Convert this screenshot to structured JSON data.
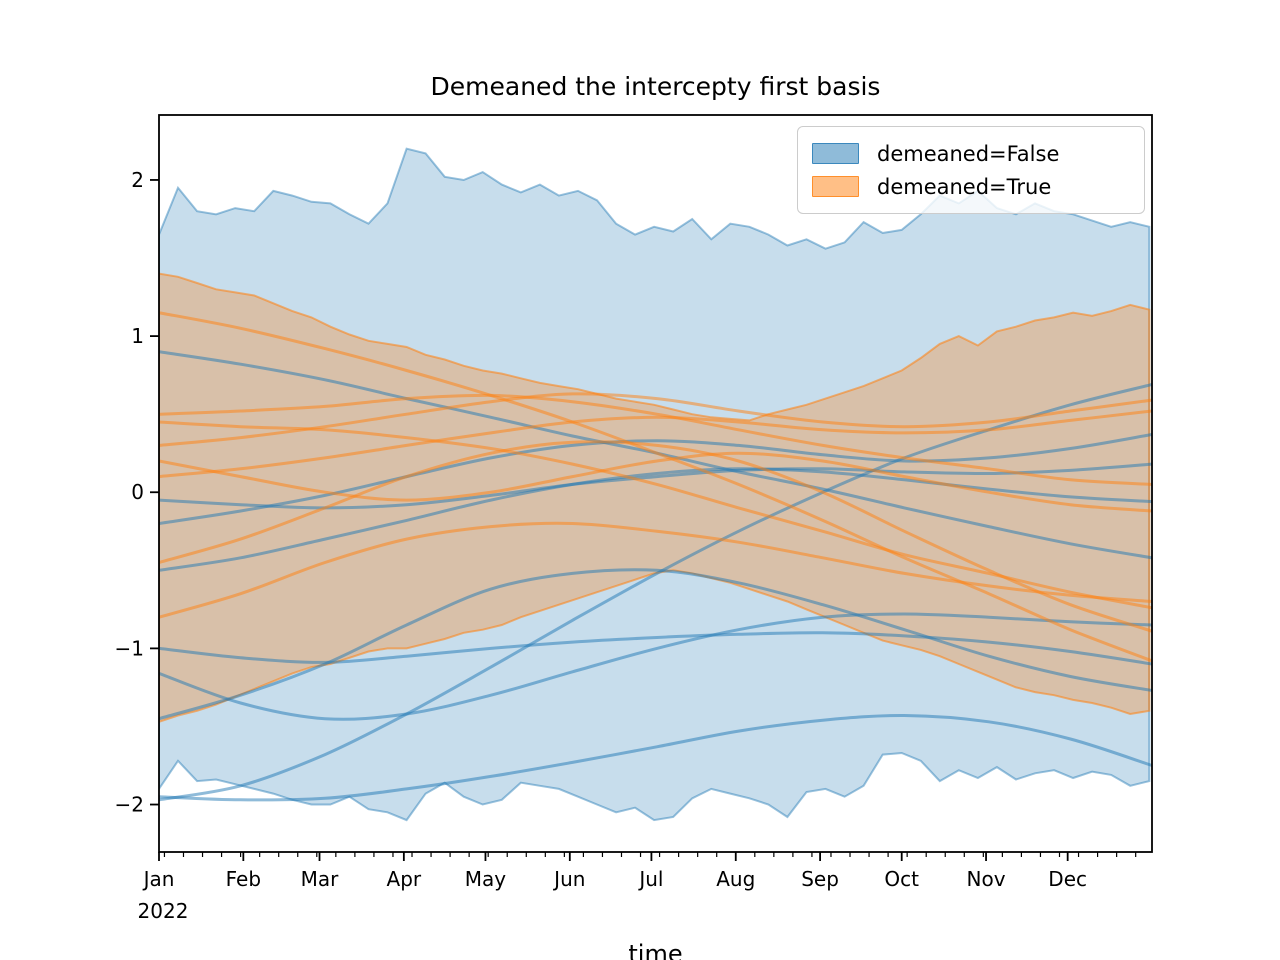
{
  "chart_data": {
    "type": "line",
    "title": "Demeaned the intercepty first basis",
    "xlabel": "time",
    "ylabel": "",
    "grid": false,
    "legend_position": "upper right",
    "legend": {
      "entries": [
        {
          "label": "demeaned=False",
          "series": "demeaned_false"
        },
        {
          "label": "demeaned=True",
          "series": "demeaned_true"
        }
      ]
    },
    "colors": {
      "demeaned_false": "#1f77b4",
      "demeaned_true": "#ff7f0e",
      "band_alpha_false": 0.25,
      "band_alpha_true": 0.3,
      "band_edge_alpha_false": 0.45,
      "band_edge_alpha_true": 0.55,
      "line_alpha": 0.5,
      "axis_color": "#000000"
    },
    "x_axis": {
      "unit": "day of year 2022",
      "range_days": [
        0,
        365
      ],
      "major_tick_days": [
        0,
        31,
        59,
        90,
        120,
        151,
        181,
        212,
        243,
        273,
        304,
        334
      ],
      "major_tick_labels": [
        "Jan",
        "Feb",
        "Mar",
        "Apr",
        "May",
        "Jun",
        "Jul",
        "Aug",
        "Sep",
        "Oct",
        "Nov",
        "Dec"
      ],
      "year_label": "2022",
      "minor_tick_start_day": 2,
      "minor_tick_interval_days": 7
    },
    "y_axis": {
      "range": [
        -2.304,
        2.416
      ],
      "ticks": [
        -2,
        -1,
        0,
        1,
        2
      ],
      "tick_labels": [
        "−2",
        "−1",
        "0",
        "1",
        "2"
      ]
    },
    "bands": {
      "sample_interval_days": 7,
      "demeaned_false": {
        "upper": [
          1.65,
          1.95,
          1.8,
          1.78,
          1.82,
          1.8,
          1.93,
          1.9,
          1.86,
          1.85,
          1.78,
          1.72,
          1.85,
          2.2,
          2.17,
          2.02,
          2.0,
          2.05,
          1.97,
          1.92,
          1.97,
          1.9,
          1.93,
          1.87,
          1.72,
          1.65,
          1.7,
          1.67,
          1.75,
          1.62,
          1.72,
          1.7,
          1.65,
          1.58,
          1.62,
          1.56,
          1.6,
          1.73,
          1.66,
          1.68,
          1.78,
          1.9,
          1.85,
          1.93,
          1.82,
          1.78,
          1.85,
          1.8,
          1.78,
          1.74,
          1.7,
          1.73,
          1.7
        ],
        "lower": [
          -1.9,
          -1.72,
          -1.85,
          -1.84,
          -1.87,
          -1.9,
          -1.93,
          -1.97,
          -2.0,
          -2.0,
          -1.95,
          -2.03,
          -2.05,
          -2.1,
          -1.93,
          -1.86,
          -1.95,
          -2.0,
          -1.97,
          -1.86,
          -1.88,
          -1.9,
          -1.95,
          -2.0,
          -2.05,
          -2.02,
          -2.1,
          -2.08,
          -1.96,
          -1.9,
          -1.93,
          -1.96,
          -2.0,
          -2.08,
          -1.92,
          -1.9,
          -1.95,
          -1.88,
          -1.68,
          -1.67,
          -1.72,
          -1.85,
          -1.78,
          -1.83,
          -1.76,
          -1.84,
          -1.8,
          -1.78,
          -1.83,
          -1.79,
          -1.81,
          -1.88,
          -1.85
        ]
      },
      "demeaned_true": {
        "upper": [
          1.4,
          1.38,
          1.34,
          1.3,
          1.28,
          1.26,
          1.21,
          1.16,
          1.12,
          1.06,
          1.01,
          0.97,
          0.95,
          0.93,
          0.88,
          0.85,
          0.81,
          0.78,
          0.76,
          0.73,
          0.7,
          0.68,
          0.66,
          0.63,
          0.6,
          0.58,
          0.56,
          0.53,
          0.5,
          0.48,
          0.47,
          0.46,
          0.5,
          0.53,
          0.56,
          0.6,
          0.64,
          0.68,
          0.73,
          0.78,
          0.86,
          0.95,
          1.0,
          0.94,
          1.03,
          1.06,
          1.1,
          1.12,
          1.15,
          1.13,
          1.16,
          1.2,
          1.17
        ],
        "lower": [
          -1.47,
          -1.43,
          -1.4,
          -1.36,
          -1.31,
          -1.26,
          -1.21,
          -1.16,
          -1.12,
          -1.1,
          -1.06,
          -1.02,
          -1.0,
          -1.0,
          -0.97,
          -0.94,
          -0.9,
          -0.88,
          -0.85,
          -0.8,
          -0.76,
          -0.72,
          -0.68,
          -0.64,
          -0.6,
          -0.56,
          -0.52,
          -0.5,
          -0.52,
          -0.55,
          -0.58,
          -0.62,
          -0.66,
          -0.7,
          -0.75,
          -0.8,
          -0.85,
          -0.9,
          -0.95,
          -0.98,
          -1.01,
          -1.05,
          -1.1,
          -1.15,
          -1.2,
          -1.25,
          -1.28,
          -1.3,
          -1.33,
          -1.35,
          -1.38,
          -1.42,
          -1.4
        ]
      }
    },
    "series": {
      "sample_days": [
        0,
        30,
        61,
        91,
        122,
        152,
        183,
        213,
        244,
        274,
        305,
        335,
        365
      ],
      "demeaned_false": [
        [
          0.9,
          0.82,
          0.72,
          0.6,
          0.48,
          0.36,
          0.25,
          0.13,
          0.02,
          -0.1,
          -0.22,
          -0.33,
          -0.42
        ],
        [
          -0.05,
          -0.08,
          -0.1,
          -0.08,
          -0.02,
          0.05,
          0.1,
          0.14,
          0.15,
          0.13,
          0.12,
          0.14,
          0.18
        ],
        [
          -0.2,
          -0.12,
          -0.02,
          0.1,
          0.22,
          0.3,
          0.33,
          0.3,
          0.24,
          0.2,
          0.22,
          0.28,
          0.37
        ],
        [
          -0.5,
          -0.42,
          -0.3,
          -0.18,
          -0.05,
          0.05,
          0.12,
          0.15,
          0.13,
          0.08,
          0.02,
          -0.03,
          -0.06
        ],
        [
          -1.0,
          -1.06,
          -1.09,
          -1.05,
          -1.0,
          -0.96,
          -0.93,
          -0.91,
          -0.9,
          -0.92,
          -0.96,
          -1.02,
          -1.1
        ],
        [
          -1.16,
          -1.35,
          -1.45,
          -1.42,
          -1.3,
          -1.15,
          -1.0,
          -0.88,
          -0.8,
          -0.78,
          -0.8,
          -0.83,
          -0.85
        ],
        [
          -1.45,
          -1.3,
          -1.1,
          -0.85,
          -0.62,
          -0.52,
          -0.5,
          -0.58,
          -0.72,
          -0.88,
          -1.05,
          -1.18,
          -1.27
        ],
        [
          -1.97,
          -1.88,
          -1.68,
          -1.42,
          -1.12,
          -0.82,
          -0.52,
          -0.25,
          0.0,
          0.22,
          0.4,
          0.56,
          0.69
        ],
        [
          -1.95,
          -1.97,
          -1.96,
          -1.9,
          -1.82,
          -1.73,
          -1.63,
          -1.53,
          -1.46,
          -1.43,
          -1.47,
          -1.58,
          -1.75
        ]
      ],
      "demeaned_true": [
        [
          1.15,
          1.05,
          0.92,
          0.78,
          0.62,
          0.45,
          0.25,
          0.05,
          -0.18,
          -0.42,
          -0.65,
          -0.88,
          -1.08
        ],
        [
          0.5,
          0.52,
          0.55,
          0.6,
          0.62,
          0.58,
          0.5,
          0.4,
          0.3,
          0.22,
          0.15,
          0.08,
          0.05
        ],
        [
          0.45,
          0.42,
          0.4,
          0.35,
          0.28,
          0.18,
          0.05,
          -0.1,
          -0.25,
          -0.4,
          -0.52,
          -0.64,
          -0.74
        ],
        [
          0.3,
          0.35,
          0.42,
          0.5,
          0.58,
          0.63,
          0.6,
          0.52,
          0.45,
          0.42,
          0.45,
          0.52,
          0.59
        ],
        [
          0.2,
          0.1,
          0.0,
          -0.05,
          0.0,
          0.1,
          0.2,
          0.25,
          0.2,
          0.1,
          0.0,
          -0.08,
          -0.12
        ],
        [
          0.1,
          0.15,
          0.22,
          0.3,
          0.38,
          0.45,
          0.48,
          0.45,
          0.4,
          0.38,
          0.4,
          0.46,
          0.52
        ],
        [
          -0.45,
          -0.3,
          -0.1,
          0.1,
          0.25,
          0.32,
          0.3,
          0.2,
          0.0,
          -0.25,
          -0.5,
          -0.72,
          -0.89
        ],
        [
          -0.8,
          -0.65,
          -0.45,
          -0.3,
          -0.22,
          -0.2,
          -0.25,
          -0.32,
          -0.42,
          -0.52,
          -0.6,
          -0.66,
          -0.7
        ]
      ]
    }
  }
}
